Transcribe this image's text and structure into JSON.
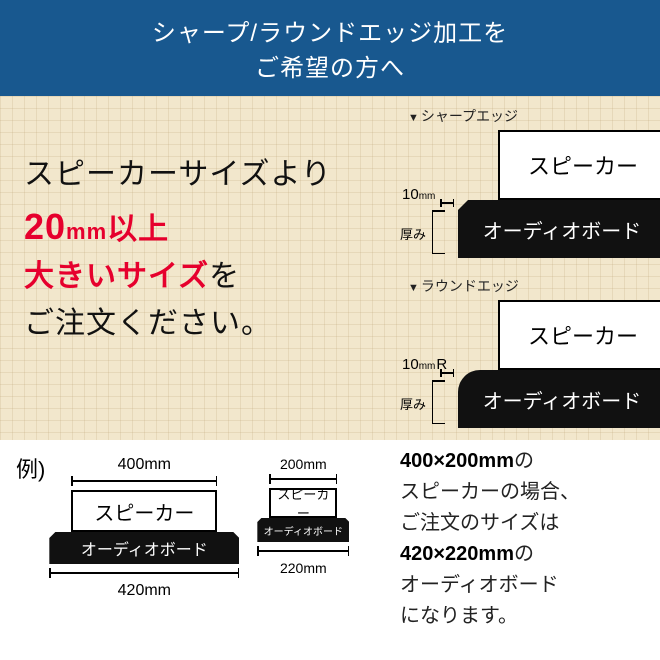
{
  "colors": {
    "banner_bg": "#18588f",
    "banner_tail": "#0d3a63",
    "grid_bg": "#f2e7cc",
    "red": "#e6002d"
  },
  "banner": {
    "line1": "シャープ/ラウンドエッジ加工を",
    "line2": "ご希望の方へ"
  },
  "main_text": {
    "l1": "スピーカーサイズより",
    "red_num": "20",
    "red_mm": "mm",
    "red_after": "以上",
    "red_l3": "大きいサイズ",
    "l3_after": "を",
    "l4": "ご注文ください。"
  },
  "edge": {
    "sharp_caption": "シャープエッジ",
    "round_caption": "ラウンドエッジ",
    "speaker": "スピーカー",
    "board": "オーディオボード",
    "ten": "10",
    "mm": "mm",
    "r": "R",
    "atsumi": "厚み"
  },
  "example": {
    "label": "例)",
    "speaker": "スピーカー",
    "board": "オーディオボード",
    "large_top": "400mm",
    "large_bot": "420mm",
    "small_top": "200mm",
    "small_bot": "220mm"
  },
  "bottom_right": {
    "b1": "400×200mm",
    "t1": "の",
    "t2": "スピーカーの場合、",
    "t3": "ご注文のサイズは",
    "b2": "420×220mm",
    "t4": "の",
    "t5": "オーディオボード",
    "t6": "になります。"
  }
}
